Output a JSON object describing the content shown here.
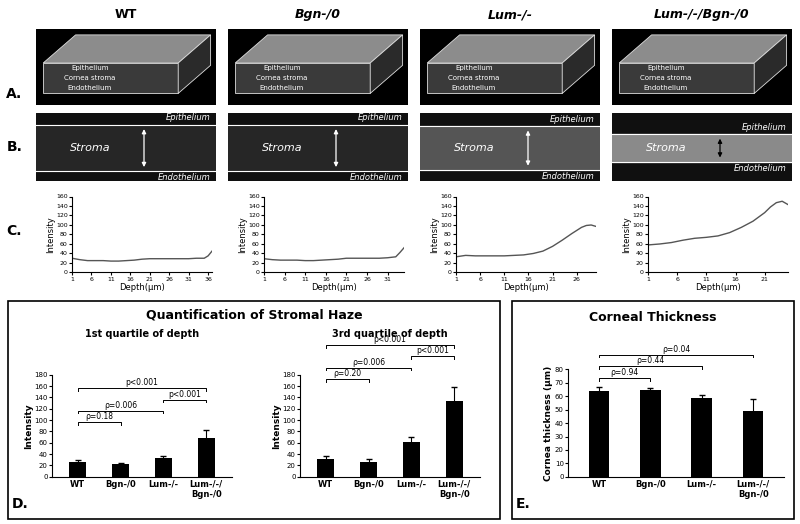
{
  "columns": [
    "WT",
    "Bgn-/0",
    "Lum-/-",
    "Lum-/-/Bgn-/0"
  ],
  "panel_labels": [
    "A.",
    "B.",
    "C.",
    "D.",
    "E."
  ],
  "panel_A": {
    "layers": [
      "Epithelium",
      "Cornea stroma",
      "Endothelium"
    ]
  },
  "panel_B": {
    "layers": [
      "Epithelium",
      "Stroma",
      "Endothelium"
    ]
  },
  "haze_title": "Quantification of Stromal Haze",
  "chart_data": [
    {
      "type": "line",
      "xlabel": "Depth(μm)",
      "ylabel": "Intensity",
      "color": "#555555",
      "x": [
        1,
        3,
        5,
        7,
        9,
        11,
        13,
        15,
        17,
        19,
        21,
        23,
        25,
        27,
        29,
        31,
        33,
        35,
        36,
        37
      ],
      "values": [
        30,
        27,
        25,
        25,
        25,
        24,
        24,
        25,
        26,
        28,
        29,
        29,
        29,
        29,
        29,
        29,
        30,
        30,
        35,
        45
      ],
      "xlim": [
        1,
        37
      ],
      "xticks": [
        1,
        6,
        11,
        16,
        21,
        26,
        31,
        36
      ],
      "ylim": [
        0,
        160
      ],
      "yticks": [
        0,
        20,
        40,
        60,
        80,
        100,
        120,
        140,
        160
      ]
    },
    {
      "type": "line",
      "xlabel": "Depth(μm)",
      "ylabel": "Intensity",
      "color": "#555555",
      "x": [
        1,
        3,
        5,
        7,
        9,
        11,
        13,
        15,
        17,
        19,
        21,
        23,
        25,
        27,
        29,
        31,
        33,
        34,
        35
      ],
      "values": [
        29,
        27,
        26,
        26,
        26,
        25,
        25,
        26,
        27,
        28,
        30,
        30,
        30,
        30,
        30,
        31,
        33,
        42,
        52
      ],
      "xlim": [
        1,
        35
      ],
      "xticks": [
        1,
        6,
        11,
        16,
        21,
        26,
        31
      ],
      "ylim": [
        0,
        160
      ],
      "yticks": [
        0,
        20,
        40,
        60,
        80,
        100,
        120,
        140,
        160
      ]
    },
    {
      "type": "line",
      "xlabel": "Depth(μm)",
      "ylabel": "Intensity",
      "color": "#555555",
      "x": [
        1,
        3,
        5,
        7,
        9,
        11,
        13,
        15,
        17,
        19,
        21,
        23,
        25,
        27,
        28,
        29,
        30
      ],
      "values": [
        33,
        36,
        35,
        35,
        35,
        35,
        36,
        37,
        40,
        45,
        55,
        68,
        82,
        95,
        99,
        100,
        97
      ],
      "xlim": [
        1,
        30
      ],
      "xticks": [
        1,
        6,
        11,
        16,
        21,
        26
      ],
      "ylim": [
        0,
        160
      ],
      "yticks": [
        0,
        20,
        40,
        60,
        80,
        100,
        120,
        140,
        160
      ]
    },
    {
      "type": "line",
      "xlabel": "Depth(μm)",
      "ylabel": "Intensity",
      "color": "#555555",
      "x": [
        1,
        3,
        5,
        7,
        9,
        11,
        13,
        15,
        17,
        19,
        21,
        22,
        23,
        24,
        25
      ],
      "values": [
        58,
        60,
        63,
        68,
        72,
        74,
        77,
        84,
        95,
        108,
        126,
        138,
        147,
        150,
        143
      ],
      "xlim": [
        1,
        25
      ],
      "xticks": [
        1,
        6,
        11,
        16,
        21
      ],
      "ylim": [
        0,
        160
      ],
      "yticks": [
        0,
        20,
        40,
        60,
        80,
        100,
        120,
        140,
        160
      ]
    },
    {
      "type": "bar",
      "title": "1st quartile of depth",
      "ylabel": "Intensity",
      "color": "#000000",
      "categories": [
        "WT",
        "Bgn-/0",
        "Lum-/-",
        "Lum-/-/\nBgn-/0"
      ],
      "values": [
        26,
        22,
        34,
        68
      ],
      "errors": [
        4,
        3,
        3,
        14
      ],
      "ylim": [
        0,
        180
      ],
      "yticks": [
        0,
        20,
        40,
        60,
        80,
        100,
        120,
        140,
        160,
        180
      ],
      "annotations": [
        {
          "text": "ρ=0.18",
          "from": "WT",
          "to": "Bgn-/0"
        },
        {
          "text": "ρ=0.006",
          "from": "WT",
          "to": "Lum-/-"
        },
        {
          "text": "p<0.001",
          "from": "Lum-/-",
          "to": "Lum-/-/\nBgn-/0"
        },
        {
          "text": "p<0.001",
          "from": "WT",
          "to": "Lum-/-/\nBgn-/0"
        }
      ]
    },
    {
      "type": "bar",
      "title": "3rd quartile of depth",
      "ylabel": "Intensity",
      "color": "#000000",
      "categories": [
        "WT",
        "Bgn-/0",
        "Lum-/-",
        "Lum-/-/\nBgn-/0"
      ],
      "values": [
        31,
        27,
        62,
        133
      ],
      "errors": [
        5,
        5,
        8,
        25
      ],
      "ylim": [
        0,
        180
      ],
      "yticks": [
        0,
        20,
        40,
        60,
        80,
        100,
        120,
        140,
        160,
        180
      ],
      "annotations": [
        {
          "text": "ρ=0.20",
          "from": "WT",
          "to": "Bgn-/0"
        },
        {
          "text": "ρ=0.006",
          "from": "WT",
          "to": "Lum-/-"
        },
        {
          "text": "p<0.001",
          "from": "Lum-/-",
          "to": "Lum-/-/\nBgn-/0"
        },
        {
          "text": "p<0.001",
          "from": "WT",
          "to": "Lum-/-/\nBgn-/0"
        }
      ]
    },
    {
      "type": "bar",
      "title": "Corneal Thickness",
      "ylabel": "Cornea thickness (μm)",
      "color": "#000000",
      "categories": [
        "WT",
        "Bgn-/0",
        "Lum-/-",
        "Lum-/-/\nBgn-/0"
      ],
      "values": [
        64,
        64.5,
        59,
        49
      ],
      "errors": [
        3,
        2,
        2,
        9
      ],
      "ylim": [
        0,
        80
      ],
      "yticks": [
        0,
        10,
        20,
        30,
        40,
        50,
        60,
        70,
        80
      ],
      "annotations": [
        {
          "text": "ρ=0.94",
          "from": "WT",
          "to": "Bgn-/0"
        },
        {
          "text": "ρ=0.44",
          "from": "WT",
          "to": "Lum-/-"
        },
        {
          "text": "ρ=0.04",
          "from": "WT",
          "to": "Lum-/-/\nBgn-/0"
        }
      ]
    }
  ]
}
